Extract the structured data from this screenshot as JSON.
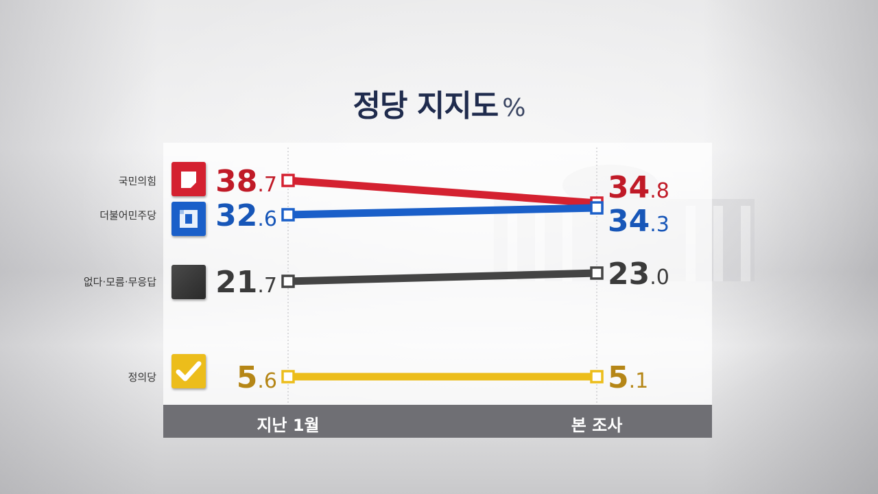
{
  "title": "정당 지지도",
  "title_unit": "%",
  "chart_data": {
    "type": "line",
    "x": [
      "지난 1월",
      "본 조사"
    ],
    "series": [
      {
        "name": "국민의힘",
        "values": [
          38.7,
          34.8
        ],
        "color": "#d42130",
        "text_color": "#c01a27",
        "icon": "ppp-logo-icon"
      },
      {
        "name": "더불어민주당",
        "values": [
          32.6,
          34.3
        ],
        "color": "#1a5fc9",
        "text_color": "#1756b8",
        "icon": "democratic-party-logo-icon"
      },
      {
        "name": "없다·모름·무응답",
        "values": [
          21.7,
          23.0
        ],
        "color": "#444444",
        "text_color": "#3a3a3a",
        "icon": "dark-square-icon"
      },
      {
        "name": "정의당",
        "values": [
          5.6,
          5.1
        ],
        "color": "#ecbd1b",
        "text_color": "#b58616",
        "icon": "justice-party-check-icon"
      }
    ],
    "ylabel": "",
    "xlabel": "",
    "grid": false,
    "legend": "left"
  }
}
